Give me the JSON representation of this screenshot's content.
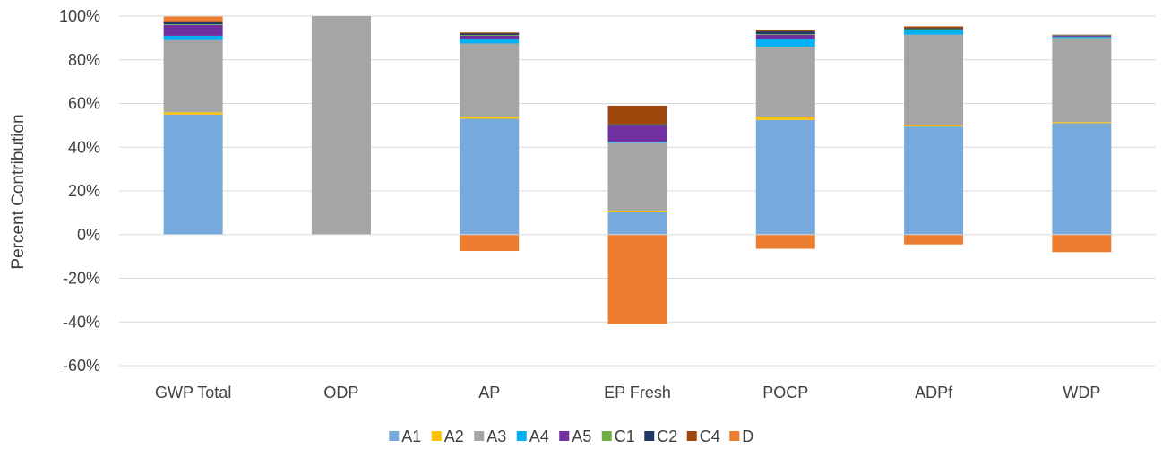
{
  "chart_data": {
    "type": "bar",
    "stacked": true,
    "title": "",
    "xlabel": "",
    "ylabel": "Percent Contribution",
    "ylim": [
      -60,
      100
    ],
    "yticks": [
      100,
      80,
      60,
      40,
      20,
      0,
      -20,
      -40,
      -60
    ],
    "ytick_labels": [
      "100%",
      "80%",
      "60%",
      "40%",
      "20%",
      "0%",
      "-20%",
      "-40%",
      "-60%"
    ],
    "grid": true,
    "legend": "bottom",
    "categories": [
      "GWP Total",
      "ODP",
      "AP",
      "EP Fresh",
      "POCP",
      "ADPf",
      "WDP"
    ],
    "series": [
      {
        "name": "A1",
        "color": "#77aadc",
        "values": [
          55,
          0,
          53,
          10.5,
          52.5,
          49.5,
          51
        ]
      },
      {
        "name": "A2",
        "color": "#ffc000",
        "values": [
          1,
          0,
          1,
          0.5,
          1.5,
          0.5,
          0.5
        ]
      },
      {
        "name": "A3",
        "color": "#a5a5a5",
        "values": [
          33,
          100,
          33.5,
          31,
          32,
          41.5,
          38.5
        ]
      },
      {
        "name": "A4",
        "color": "#00b0f0",
        "values": [
          2,
          0,
          2,
          0.5,
          3.5,
          2,
          0.5
        ]
      },
      {
        "name": "A5",
        "color": "#7030a0",
        "values": [
          5,
          0,
          1.5,
          7.5,
          2,
          0.3,
          0.5
        ]
      },
      {
        "name": "C1",
        "color": "#70ad47",
        "values": [
          0.3,
          0,
          0.3,
          0.1,
          0.3,
          0.2,
          0.1
        ]
      },
      {
        "name": "C2",
        "color": "#1f3864",
        "values": [
          1,
          0,
          0.7,
          0.4,
          1.2,
          0.5,
          0.2
        ]
      },
      {
        "name": "C4",
        "color": "#9e480e",
        "values": [
          0.5,
          0,
          0.5,
          8.5,
          0.7,
          0.8,
          0.2
        ]
      },
      {
        "name": "D",
        "color": "#ed7d31",
        "values": [
          2,
          0,
          -7.5,
          -41,
          -6.5,
          -4.5,
          -8
        ]
      }
    ]
  }
}
